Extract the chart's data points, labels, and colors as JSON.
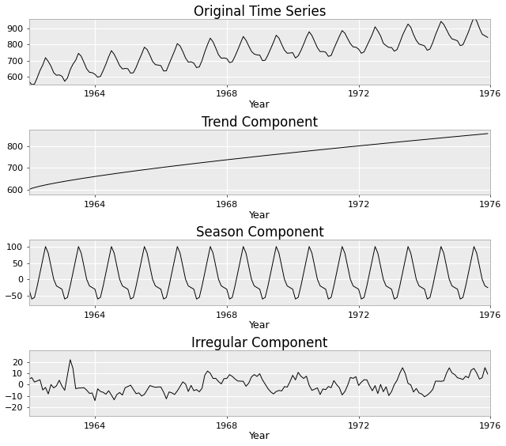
{
  "title1": "Original Time Series",
  "title2": "Trend Component",
  "title3": "Season Component",
  "title4": "Irregular Component",
  "xlabel": "Year",
  "line_color": "#000000",
  "bg_color": "#ebebeb",
  "grid_color": "#ffffff",
  "start_year": 1962,
  "n_months": 168,
  "freq": 12,
  "linewidth": 0.7,
  "title_fontsize": 12,
  "axis_fontsize": 9,
  "tick_fontsize": 8,
  "xticks": [
    1964,
    1968,
    1972,
    1976
  ],
  "yticks_orig": [
    600,
    700,
    800,
    900
  ],
  "yticks_trend": [
    600,
    700,
    800
  ],
  "yticks_season": [
    -50,
    0,
    50,
    100
  ],
  "yticks_irreg": [
    -20,
    -10,
    0,
    10,
    20
  ]
}
